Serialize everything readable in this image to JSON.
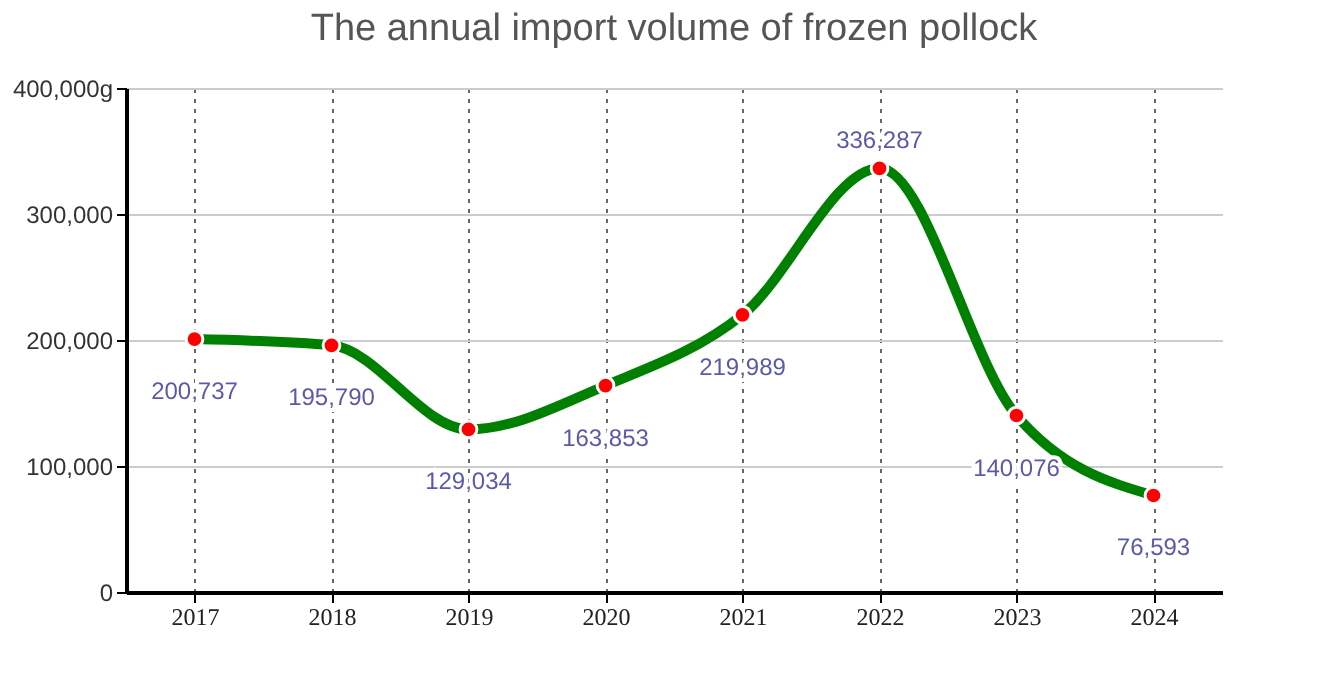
{
  "chart_data": {
    "type": "line",
    "title": "The annual import volume of frozen pollock",
    "categories": [
      "2017",
      "2018",
      "2019",
      "2020",
      "2021",
      "2022",
      "2023",
      "2024"
    ],
    "series": [
      {
        "color": "#008000",
        "colors": [
          "#ff0000",
          "#ff0000",
          "#ff0000",
          "#ff0000",
          "#ff0000",
          "#ff0000",
          "#ff0000",
          "#ff0000"
        ],
        "values": [
          200737,
          195790,
          129034,
          163853,
          219989,
          336287,
          140076,
          76593
        ]
      }
    ],
    "value_labels": [
      "200,737",
      "195,790",
      "129,034",
      "163,853",
      "219,989",
      "336,287",
      "140,076",
      "76,593"
    ],
    "ylim": [
      0,
      400000
    ],
    "yticks": [
      0,
      {
        "value": 100000,
        "label": "100,000"
      },
      {
        "value": 200000,
        "label": "200,000"
      },
      {
        "value": 300000,
        "label": "300,000"
      },
      {
        "value": 400000,
        "label": "400,000g"
      }
    ],
    "grid": true,
    "marker": "circle"
  }
}
